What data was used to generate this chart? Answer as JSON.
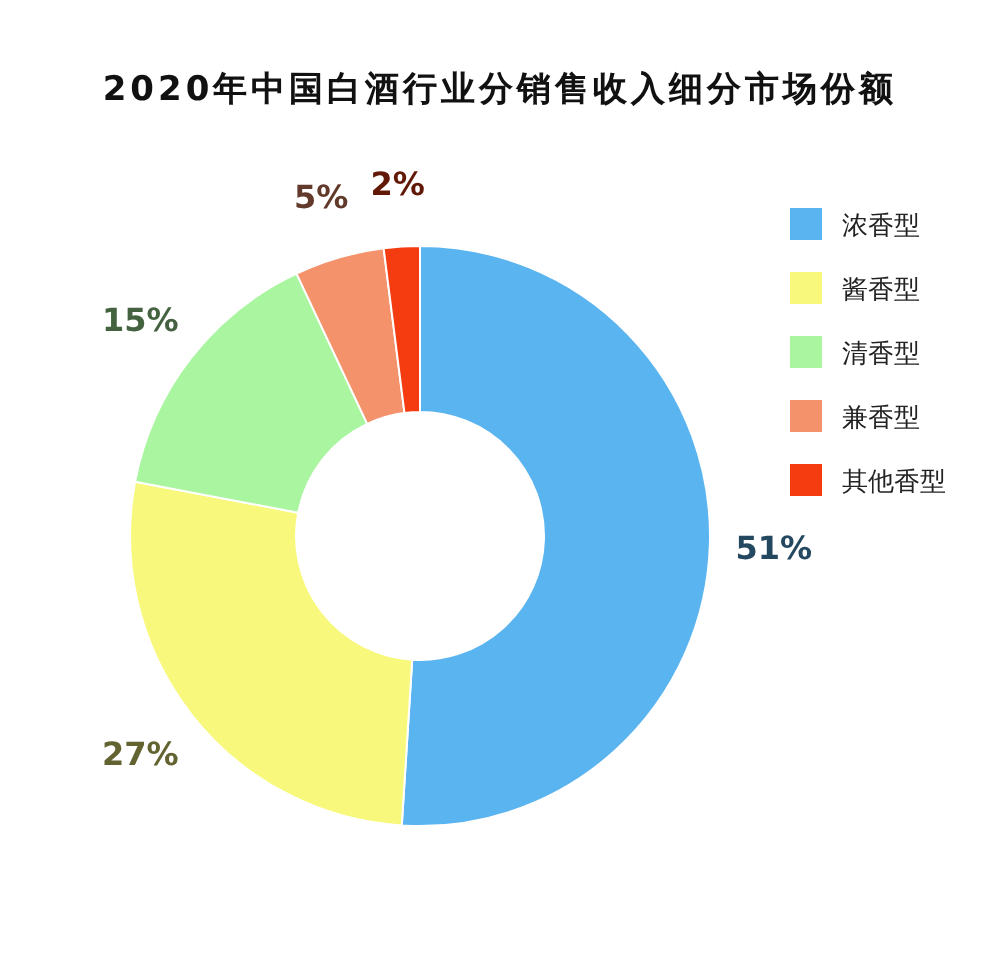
{
  "chart_data": {
    "type": "donut",
    "title": "2020年中国白酒行业分销售收入细分市场份额",
    "categories": [
      "浓香型",
      "酱香型",
      "清香型",
      "兼香型",
      "其他香型"
    ],
    "values": [
      51,
      27,
      15,
      5,
      2
    ],
    "colors": [
      "#5ab4f0",
      "#f8f87c",
      "#a9f5a0",
      "#f4926c",
      "#f53b10"
    ],
    "value_labels": [
      "51%",
      "27%",
      "15%",
      "5%",
      "2%"
    ],
    "legend": "right"
  }
}
